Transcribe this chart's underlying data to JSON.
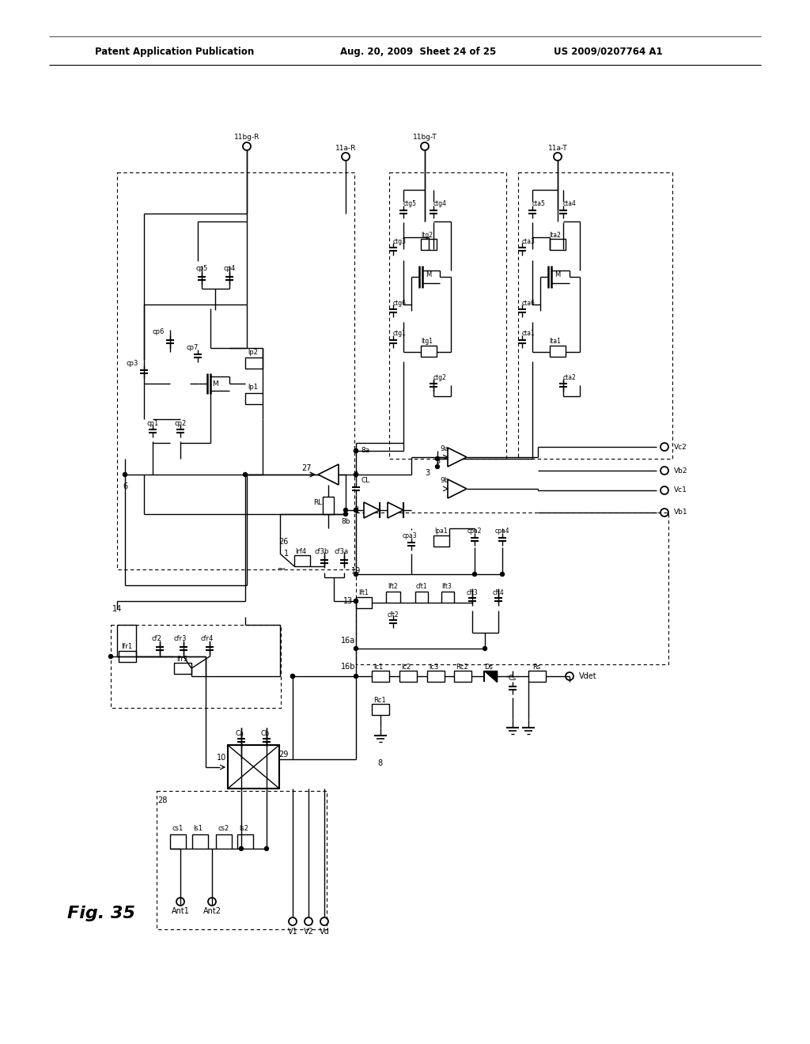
{
  "bg_color": "#ffffff",
  "header_left": "Patent Application Publication",
  "header_mid": "Aug. 20, 2009  Sheet 24 of 25",
  "header_right": "US 2009/0207764 A1",
  "fig_label": "Fig. 35"
}
